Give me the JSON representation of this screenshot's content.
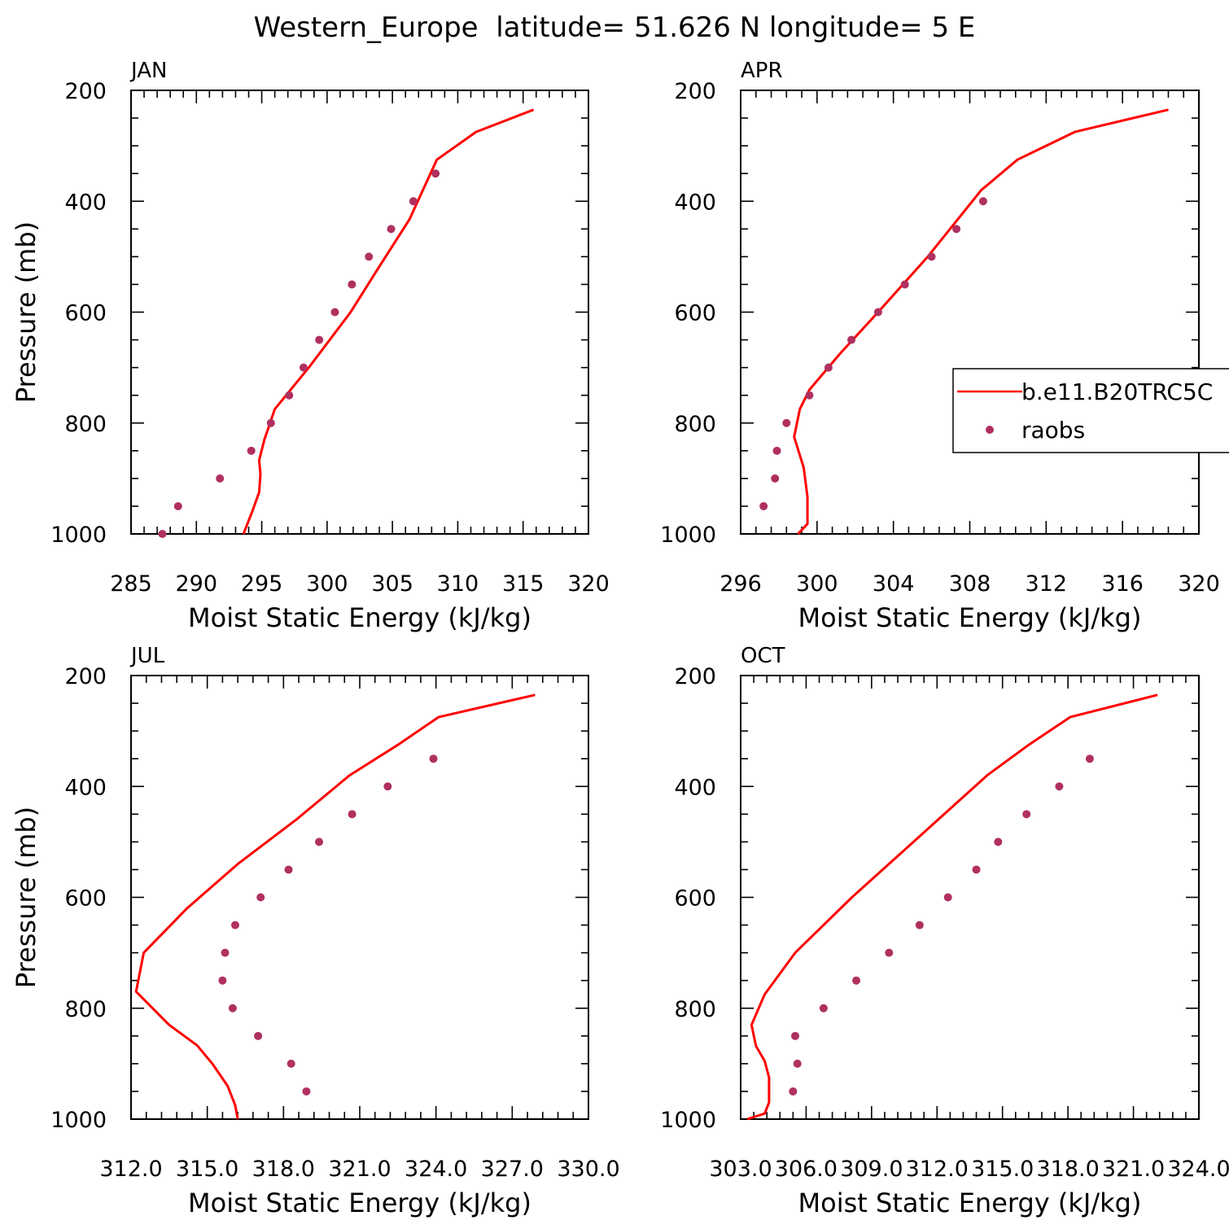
{
  "title": "Western_Europe  latitude= 51.626 N longitude= 5 E",
  "legend": {
    "model_label": "b.e11.B20TRC5C",
    "obs_label": "raobs",
    "placement": "inside APR panel, right edge (clipped)"
  },
  "colors": {
    "model": "#ff0000",
    "obs": "#b03060",
    "axes": "#000000"
  },
  "chart_data": [
    {
      "type": "line",
      "panel": "JAN",
      "xlabel": "Moist Static Energy (kJ/kg)",
      "ylabel": "Pressure (mb)",
      "xlim": [
        285,
        320
      ],
      "ylim": [
        1000,
        200
      ],
      "yticks": [
        "200",
        "400",
        "600",
        "800",
        "1000"
      ],
      "xticks": [
        285,
        290,
        295,
        300,
        305,
        310,
        315,
        320
      ],
      "xtick_labels": [
        "285",
        "290",
        "295",
        "300",
        "305",
        "310",
        "315",
        "320"
      ],
      "series": [
        {
          "name": "b.e11.B20TRC5C",
          "kind": "line",
          "x": [
            293.6,
            294.3,
            294.8,
            294.9,
            294.8,
            295.2,
            296.0,
            298.6,
            301.8,
            303.8,
            306.3,
            308.4,
            311.4,
            315.8
          ],
          "y": [
            1000,
            958,
            925,
            892,
            867,
            830,
            775,
            700,
            600,
            525,
            433,
            325,
            275,
            235
          ]
        },
        {
          "name": "raobs",
          "kind": "points",
          "x": [
            287.4,
            288.6,
            291.8,
            294.2,
            295.7,
            297.1,
            298.2,
            299.4,
            300.6,
            301.9,
            303.2,
            304.9,
            306.6,
            308.3
          ],
          "y": [
            1000,
            950,
            900,
            850,
            800,
            750,
            700,
            650,
            600,
            550,
            500,
            450,
            400,
            350
          ]
        }
      ]
    },
    {
      "type": "line",
      "panel": "APR",
      "xlabel": "Moist Static Energy (kJ/kg)",
      "ylabel": "",
      "xlim": [
        296,
        320
      ],
      "ylim": [
        1000,
        200
      ],
      "yticks": [
        "200",
        "400",
        "600",
        "800",
        "1000"
      ],
      "xticks": [
        296,
        300,
        304,
        308,
        312,
        316,
        320
      ],
      "xtick_labels": [
        "296",
        "300",
        "304",
        "308",
        "312",
        "316",
        "320"
      ],
      "series": [
        {
          "name": "b.e11.B20TRC5C",
          "kind": "line",
          "x": [
            299.0,
            299.5,
            299.5,
            299.3,
            298.8,
            299.1,
            299.6,
            301.2,
            303.2,
            305.8,
            308.6,
            310.5,
            313.5,
            318.4
          ],
          "y": [
            1000,
            982,
            933,
            880,
            825,
            775,
            740,
            675,
            600,
            500,
            380,
            325,
            275,
            235
          ]
        },
        {
          "name": "raobs",
          "kind": "points",
          "x": [
            297.2,
            297.8,
            297.9,
            298.4,
            299.6,
            300.6,
            301.8,
            303.2,
            304.6,
            306.0,
            307.3,
            308.7
          ],
          "y": [
            950,
            900,
            850,
            800,
            750,
            700,
            650,
            600,
            550,
            500,
            450,
            400
          ]
        }
      ]
    },
    {
      "type": "line",
      "panel": "JUL",
      "xlabel": "Moist Static Energy (kJ/kg)",
      "ylabel": "Pressure (mb)",
      "xlim": [
        312,
        330
      ],
      "ylim": [
        1000,
        200
      ],
      "yticks": [
        "200",
        "400",
        "600",
        "800",
        "1000"
      ],
      "xticks": [
        312,
        315,
        318,
        321,
        324,
        327,
        330
      ],
      "xtick_labels": [
        "312.0",
        "315.0",
        "318.0",
        "321.0",
        "324.0",
        "327.0",
        "330.0"
      ],
      "series": [
        {
          "name": "b.e11.B20TRC5C",
          "kind": "line",
          "x": [
            316.2,
            316.1,
            315.8,
            315.2,
            314.6,
            313.5,
            312.2,
            312.5,
            314.2,
            316.2,
            318.5,
            320.6,
            322.5,
            324.1,
            327.9
          ],
          "y": [
            1000,
            975,
            940,
            900,
            867,
            830,
            770,
            700,
            620,
            540,
            460,
            380,
            325,
            275,
            235
          ]
        },
        {
          "name": "raobs",
          "kind": "points",
          "x": [
            318.9,
            318.3,
            317.0,
            316.0,
            315.6,
            315.7,
            316.1,
            317.1,
            318.2,
            319.4,
            320.7,
            322.1,
            323.9
          ],
          "y": [
            950,
            900,
            850,
            800,
            750,
            700,
            650,
            600,
            550,
            500,
            450,
            400,
            350
          ]
        }
      ]
    },
    {
      "type": "line",
      "panel": "OCT",
      "xlabel": "Moist Static Energy (kJ/kg)",
      "ylabel": "",
      "xlim": [
        303,
        324
      ],
      "ylim": [
        1000,
        200
      ],
      "yticks": [
        "200",
        "400",
        "600",
        "800",
        "1000"
      ],
      "xticks": [
        303,
        306,
        309,
        312,
        315,
        318,
        321,
        324
      ],
      "xtick_labels": [
        "303.0",
        "306.0",
        "309.0",
        "312.0",
        "315.0",
        "318.0",
        "321.0",
        "324.0"
      ],
      "series": [
        {
          "name": "b.e11.B20TRC5C",
          "kind": "line",
          "x": [
            303.3,
            304.1,
            304.3,
            304.3,
            304.1,
            303.7,
            303.5,
            304.1,
            305.5,
            308.1,
            311.2,
            314.3,
            316.2,
            318.1,
            322.1
          ],
          "y": [
            1000,
            990,
            970,
            925,
            895,
            868,
            830,
            775,
            700,
            600,
            490,
            380,
            325,
            275,
            235
          ]
        },
        {
          "name": "raobs",
          "kind": "points",
          "x": [
            305.4,
            305.6,
            305.5,
            306.8,
            308.3,
            309.8,
            311.2,
            312.5,
            313.8,
            314.8,
            316.1,
            317.6,
            319.0
          ],
          "y": [
            950,
            900,
            850,
            800,
            750,
            700,
            650,
            600,
            550,
            500,
            450,
            400,
            350
          ]
        }
      ]
    }
  ]
}
